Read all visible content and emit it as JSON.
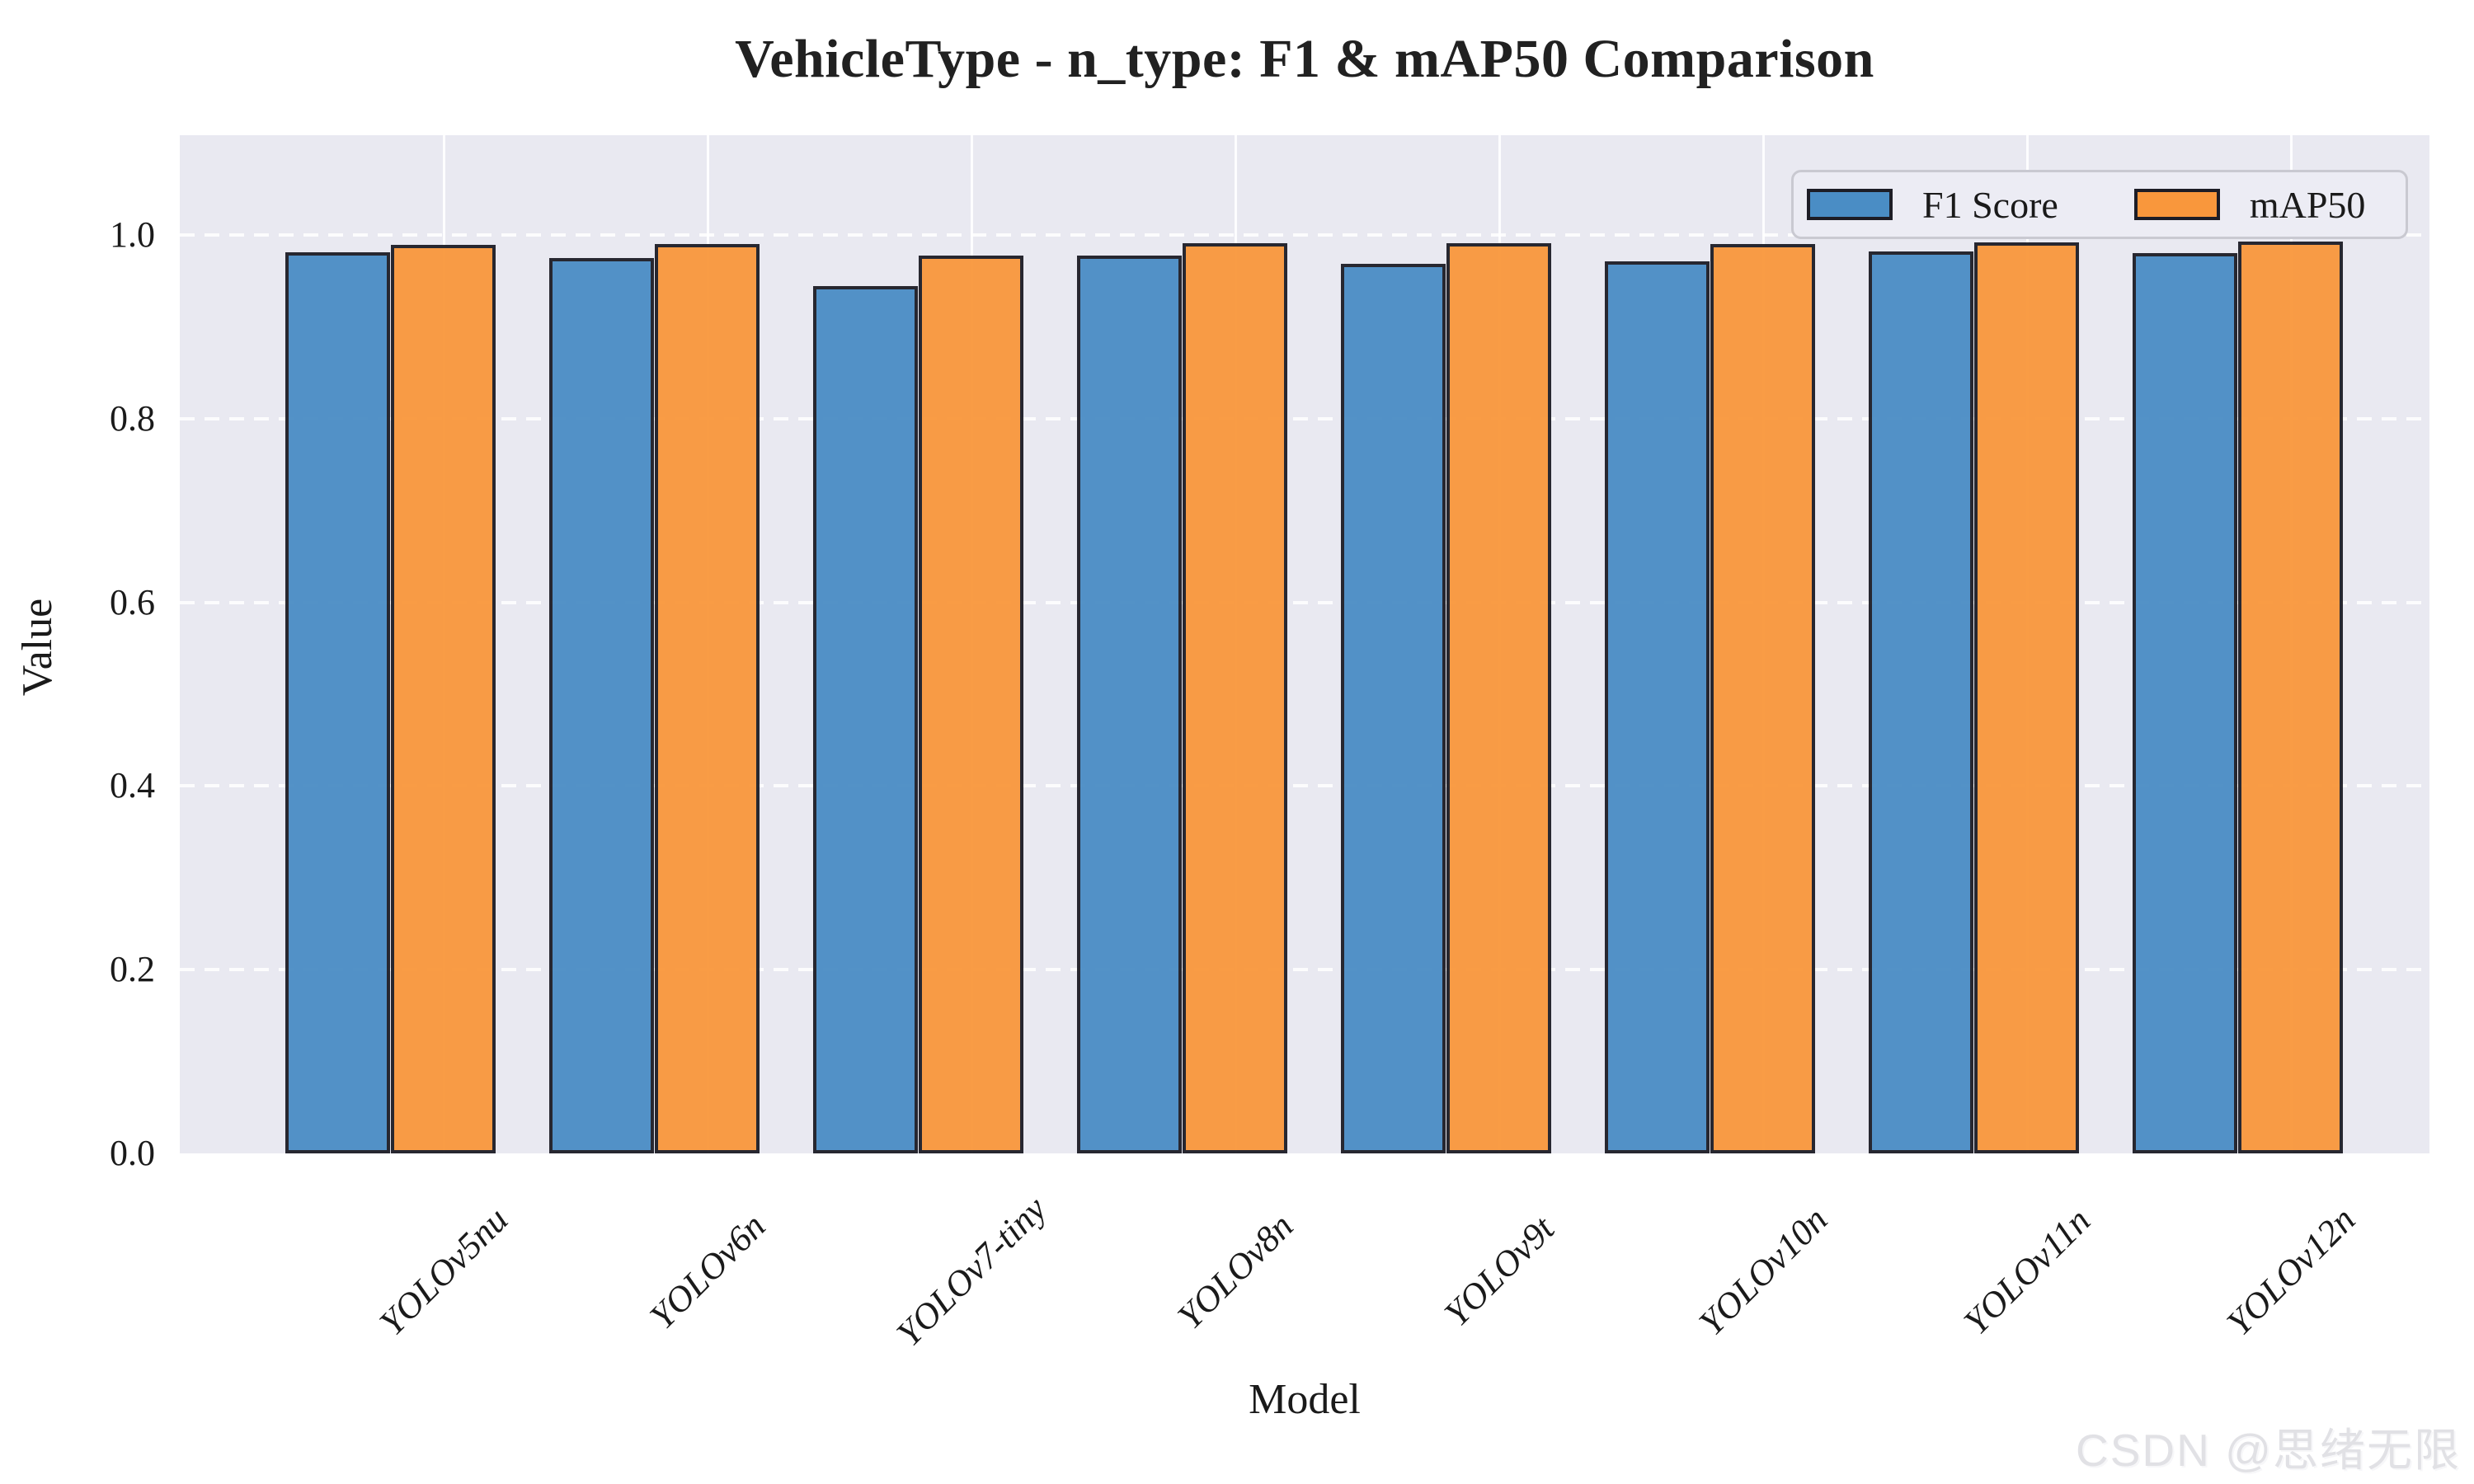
{
  "watermark": "CSDN @思绪无限",
  "chart_data": {
    "type": "bar",
    "title": "VehicleType - n_type: F1 & mAP50 Comparison",
    "xlabel": "Model",
    "ylabel": "Value",
    "categories": [
      "YOLOv5nu",
      "YOLOv6n",
      "YOLOv7-tiny",
      "YOLOv8n",
      "YOLOv9t",
      "YOLOv10n",
      "YOLOv11n",
      "YOLOv12n"
    ],
    "series": [
      {
        "name": "F1 Score",
        "color": "#4a8dc5",
        "values": [
          0.981,
          0.975,
          0.944,
          0.978,
          0.969,
          0.971,
          0.982,
          0.98
        ]
      },
      {
        "name": "mAP50",
        "color": "#f9973c",
        "values": [
          0.989,
          0.99,
          0.978,
          0.991,
          0.991,
          0.99,
          0.992,
          0.993
        ]
      }
    ],
    "ylim": [
      0.0,
      1.109
    ],
    "yticks": [
      0.0,
      0.2,
      0.4,
      0.6,
      0.8,
      1.0
    ],
    "grid": {
      "horizontal": "white dashed",
      "vertical": "white solid",
      "plot_background": "#e9e9f1"
    },
    "bar_edge_color": "#1d1d26",
    "legend_position": "upper right"
  }
}
